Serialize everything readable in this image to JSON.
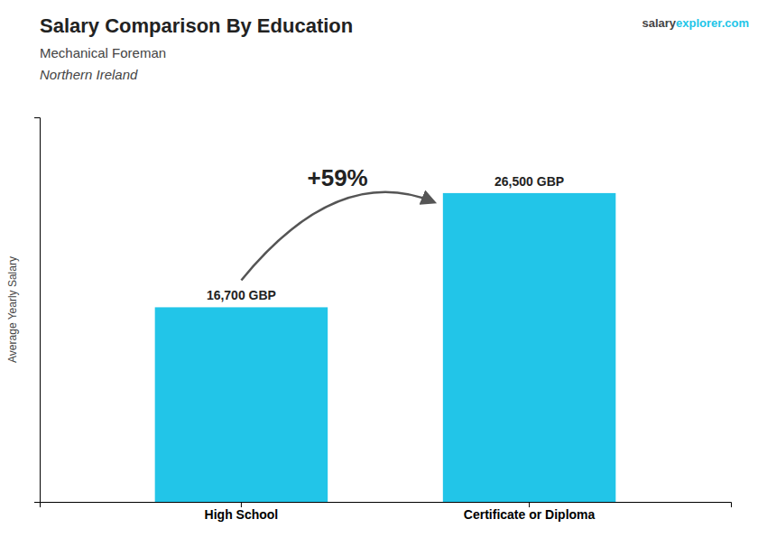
{
  "chart_data": {
    "type": "bar",
    "title": "Salary Comparison By Education",
    "subtitle": [
      "Mechanical Foreman",
      "Northern Ireland"
    ],
    "y_label": "Average Yearly Salary",
    "annotations": [
      "+59%",
      "salary",
      "explorer.com"
    ],
    "categories": [
      "High School",
      "Certificate or Diploma"
    ],
    "values": [
      16700,
      26500
    ],
    "value_labels": [
      "16,700 GBP",
      "26,500 GBP"
    ],
    "data_labels": true,
    "color": "#22c5e8",
    "ylim": [
      0,
      33000
    ],
    "tick_labels": "x",
    "grid": false
  }
}
